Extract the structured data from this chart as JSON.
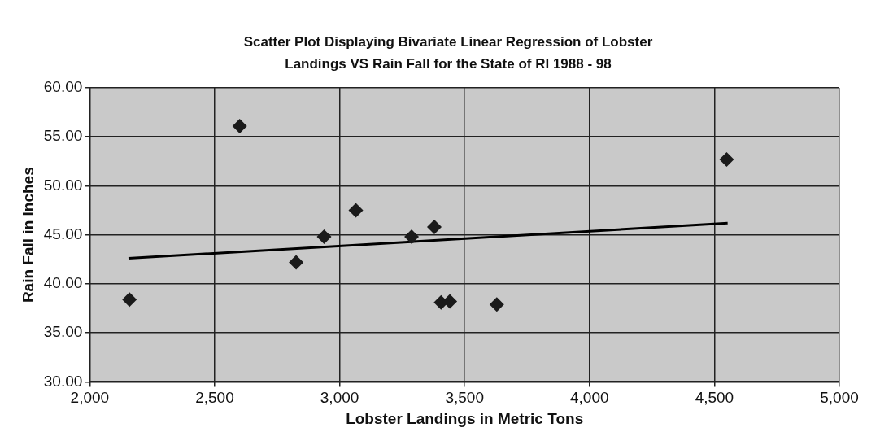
{
  "chart_data": {
    "type": "scatter",
    "title": "Scatter Plot Displaying Bivariate Linear Regression of Lobster Landings VS Rain Fall for the State of RI 1988 - 98",
    "xlabel": "Lobster Landings in Metric Tons",
    "ylabel": "Rain Fall in Inches",
    "series": [
      {
        "type": "scatter",
        "color": "#1a1a1a",
        "marker": "diamond",
        "x": [
          2159,
          2600,
          2826,
          2938,
          3065,
          3288,
          3379,
          3406,
          3441,
          3629,
          4549
        ],
        "values": [
          38.4,
          56.1,
          42.2,
          44.8,
          47.5,
          44.8,
          45.8,
          38.1,
          38.2,
          37.9,
          52.7
        ]
      },
      {
        "type": "line",
        "color": "#000000",
        "marker": "none",
        "line_style": "solid",
        "x": [
          2155,
          4553
        ],
        "values": [
          42.6,
          46.2
        ]
      }
    ],
    "xlim": [
      2000,
      5000
    ],
    "ylim": [
      30,
      60
    ],
    "xticks": [
      {
        "value": 2000,
        "label": "2,000"
      },
      {
        "value": 2500,
        "label": "2,500"
      },
      {
        "value": 3000,
        "label": "3,000"
      },
      {
        "value": 3500,
        "label": "3,500"
      },
      {
        "value": 4000,
        "label": "4,000"
      },
      {
        "value": 4500,
        "label": "4,500"
      },
      {
        "value": 5000,
        "label": "5,000"
      }
    ],
    "yticks": [
      {
        "value": 30,
        "label": "30.00"
      },
      {
        "value": 35,
        "label": "35.00"
      },
      {
        "value": 40,
        "label": "40.00"
      },
      {
        "value": 45,
        "label": "45.00"
      },
      {
        "value": 50,
        "label": "50.00"
      },
      {
        "value": 55,
        "label": "55.00"
      },
      {
        "value": 60,
        "label": "60.00"
      }
    ],
    "grid": true,
    "legend": false
  }
}
